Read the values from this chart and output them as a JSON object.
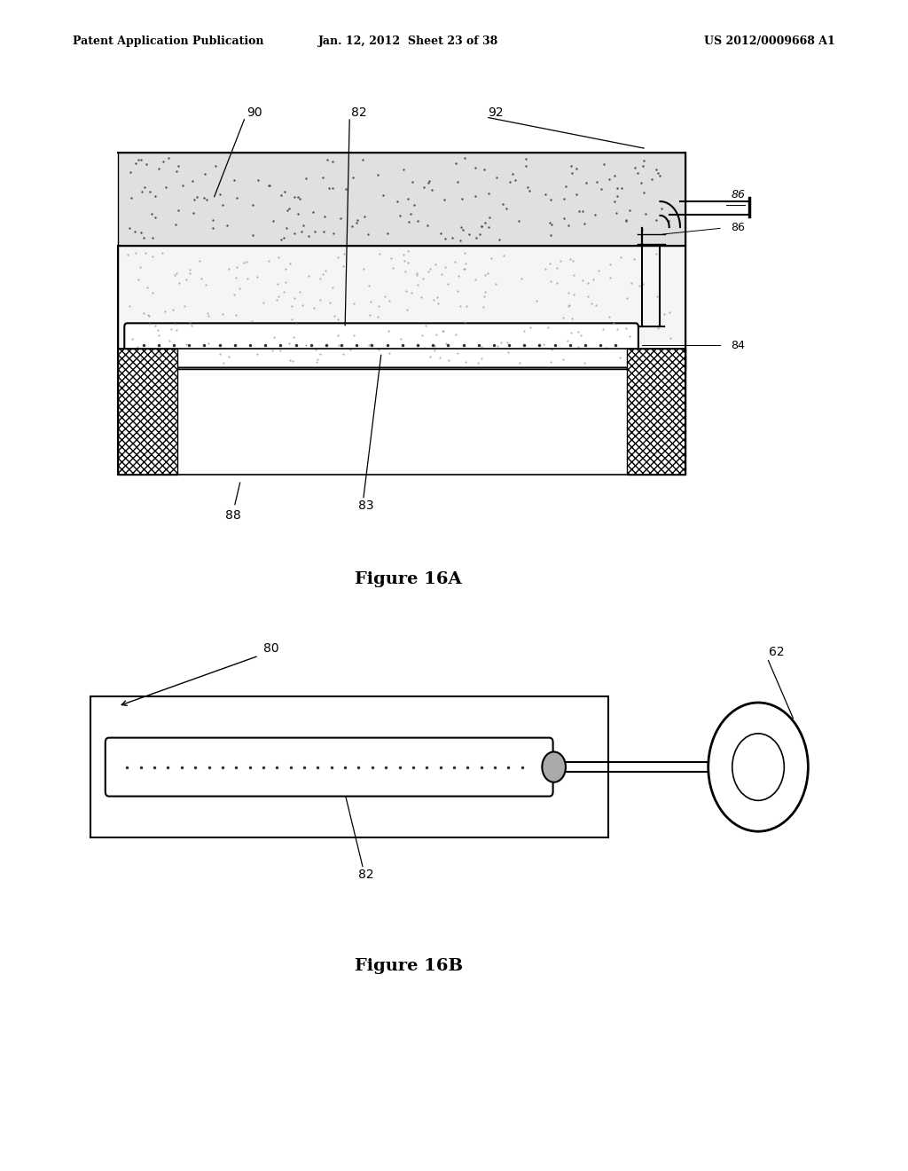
{
  "header_left": "Patent Application Publication",
  "header_center": "Jan. 12, 2012  Sheet 23 of 38",
  "header_right": "US 2012/0009668 A1",
  "fig16a_title": "Figure 16A",
  "fig16b_title": "Figure 16B",
  "bg_color": "#ffffff",
  "line_color": "#000000"
}
